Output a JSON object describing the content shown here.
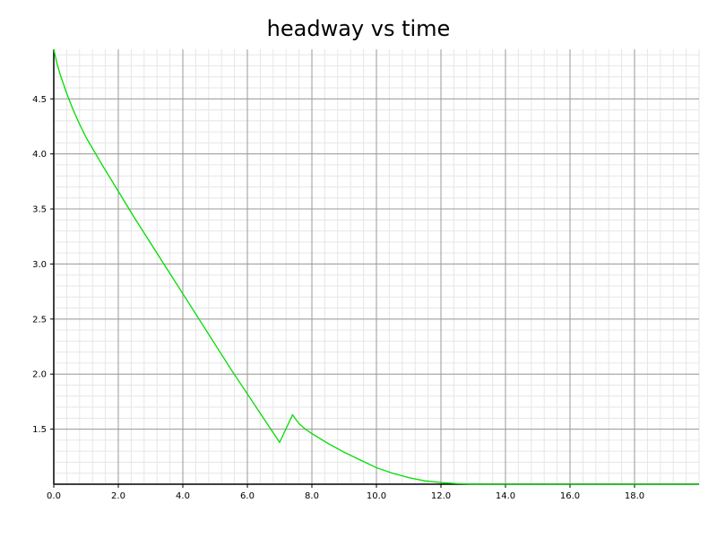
{
  "chart_data": {
    "type": "line",
    "title": "headway vs time",
    "xlabel": "",
    "ylabel": "",
    "xlim": [
      0.0,
      20.0
    ],
    "ylim": [
      1.0,
      4.95
    ],
    "x_ticks": [
      0.0,
      2.0,
      4.0,
      6.0,
      8.0,
      10.0,
      12.0,
      14.0,
      16.0,
      18.0
    ],
    "x_tick_labels": [
      "0.0",
      "2.0",
      "4.0",
      "6.0",
      "8.0",
      "10.0",
      "12.0",
      "14.0",
      "16.0",
      "18.0"
    ],
    "y_ticks": [
      1.5,
      2.0,
      2.5,
      3.0,
      3.5,
      4.0,
      4.5
    ],
    "y_tick_labels": [
      "1.5",
      "2.0",
      "2.5",
      "3.0",
      "3.5",
      "4.0",
      "4.5"
    ],
    "grid": true,
    "minor_grid": true,
    "line_color": "#00dd00",
    "series": [
      {
        "x": [
          0.0,
          0.1,
          0.2,
          0.4,
          0.6,
          0.8,
          1.0,
          1.5,
          2.0,
          2.5,
          3.0,
          3.5,
          4.0,
          4.5,
          5.0,
          5.5,
          6.0,
          6.5,
          7.0,
          7.4,
          7.6,
          7.8,
          8.0,
          8.5,
          9.0,
          9.5,
          10.0,
          10.5,
          11.0,
          11.5,
          12.0,
          12.5,
          13.0,
          14.0,
          16.0,
          18.0,
          20.0
        ],
        "y": [
          4.95,
          4.82,
          4.72,
          4.55,
          4.4,
          4.27,
          4.15,
          3.9,
          3.66,
          3.42,
          3.19,
          2.96,
          2.73,
          2.5,
          2.27,
          2.04,
          1.82,
          1.6,
          1.38,
          1.63,
          1.55,
          1.5,
          1.46,
          1.37,
          1.29,
          1.22,
          1.15,
          1.1,
          1.06,
          1.03,
          1.015,
          1.005,
          1.0,
          1.0,
          1.0,
          1.0,
          1.0
        ]
      }
    ]
  }
}
